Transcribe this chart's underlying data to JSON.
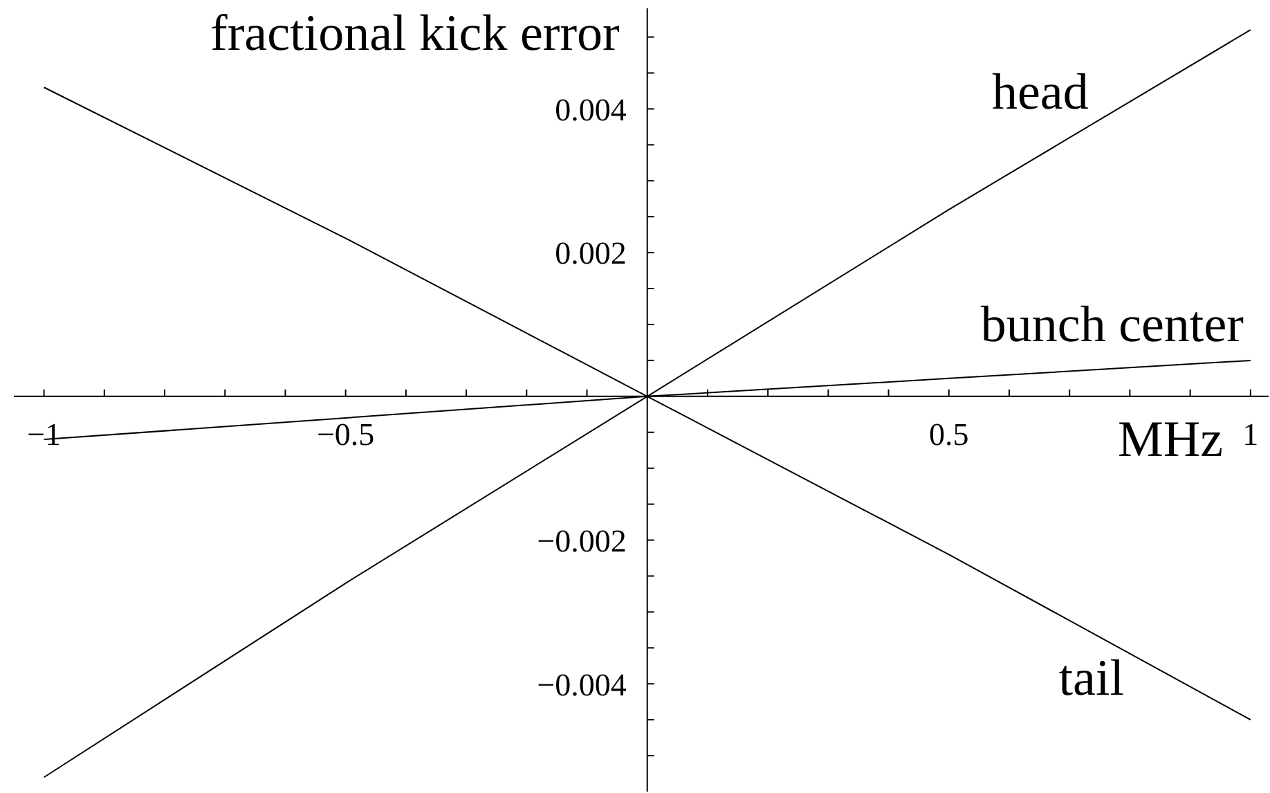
{
  "chart_data": {
    "type": "line",
    "xlabel": "MHz",
    "ylabel": "fractional kick error",
    "x": [
      -1,
      -0.5,
      0,
      0.5,
      1
    ],
    "series": [
      {
        "name": "head",
        "color": "#000000",
        "values": [
          -0.0053,
          -0.0026,
          0,
          0.0026,
          0.0051
        ]
      },
      {
        "name": "bunch center",
        "color": "#000000",
        "values": [
          -0.0006,
          -0.0003,
          0,
          0.00025,
          0.0005
        ]
      },
      {
        "name": "tail",
        "color": "#000000",
        "values": [
          0.0043,
          0.0022,
          0,
          -0.0022,
          -0.0045
        ]
      }
    ],
    "xlim": [
      -1.05,
      1.03
    ],
    "xticks": [
      {
        "value": -1,
        "label": "−1"
      },
      {
        "value": -0.9,
        "label": null
      },
      {
        "value": -0.8,
        "label": null
      },
      {
        "value": -0.7,
        "label": null
      },
      {
        "value": -0.6,
        "label": null
      },
      {
        "value": -0.5,
        "label": "−0.5"
      },
      {
        "value": -0.4,
        "label": null
      },
      {
        "value": -0.3,
        "label": null
      },
      {
        "value": -0.2,
        "label": null
      },
      {
        "value": -0.1,
        "label": null
      },
      {
        "value": 0.1,
        "label": null
      },
      {
        "value": 0.2,
        "label": null
      },
      {
        "value": 0.3,
        "label": null
      },
      {
        "value": 0.4,
        "label": null
      },
      0.5,
      {
        "value": 0.6,
        "label": null
      },
      {
        "value": 0.7,
        "label": null
      },
      {
        "value": 0.8,
        "label": null
      },
      {
        "value": 0.9,
        "label": null
      },
      1
    ],
    "ylim": [
      -0.0055,
      0.0054
    ],
    "yticks": [
      {
        "value": -0.005,
        "label": null
      },
      {
        "value": -0.0045,
        "label": null
      },
      {
        "value": -0.004,
        "label": "−0.004"
      },
      {
        "value": -0.0035,
        "label": null
      },
      {
        "value": -0.003,
        "label": null
      },
      {
        "value": -0.0025,
        "label": null
      },
      {
        "value": -0.002,
        "label": "−0.002"
      },
      {
        "value": -0.0015,
        "label": null
      },
      {
        "value": -0.001,
        "label": null
      },
      {
        "value": -0.0005,
        "label": null
      },
      {
        "value": 0.0005,
        "label": null
      },
      {
        "value": 0.001,
        "label": null
      },
      {
        "value": 0.0015,
        "label": null
      },
      0.002,
      {
        "value": 0.0025,
        "label": null
      },
      {
        "value": 0.003,
        "label": null
      },
      {
        "value": 0.0035,
        "label": null
      },
      0.004,
      {
        "value": 0.0045,
        "label": null
      },
      {
        "value": 0.005,
        "label": null
      }
    ],
    "grid": false,
    "legend": false,
    "marker": "none",
    "line_style": "solid"
  }
}
